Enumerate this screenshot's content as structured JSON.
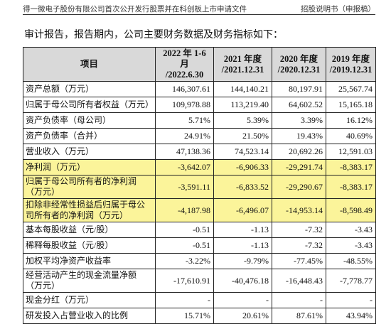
{
  "header": {
    "left": "得一微电子股份有限公司首次公开发行股票并在科创板上市申请文件",
    "right": "招股说明书（申报稿）"
  },
  "intro": "审计报告，报告期内，公司主要财务数据及财务指标如下：",
  "table": {
    "columns": [
      [
        "项目"
      ],
      [
        "2022 年 1-6 月",
        "/2022.6.30"
      ],
      [
        "2021 年度",
        "/2021.12.31"
      ],
      [
        "2020 年度",
        "/2020.12.31"
      ],
      [
        "2019 年度",
        "/2019.12.31"
      ]
    ],
    "rows": [
      [
        "资产总额（万元）",
        "146,307.61",
        "144,140.21",
        "80,197.91",
        "25,567.74"
      ],
      [
        "归属于母公司所有者权益（万元）",
        "109,978.88",
        "113,219.40",
        "64,602.52",
        "15,165.18"
      ],
      [
        "资产负债率（母公司）",
        "5.71%",
        "5.39%",
        "3.39%",
        "16.12%"
      ],
      [
        "资产负债率（合并）",
        "24.91%",
        "21.50%",
        "19.43%",
        "40.69%"
      ],
      [
        "营业收入（万元）",
        "47,138.36",
        "74,523.14",
        "20,692.26",
        "12,591.03"
      ],
      [
        "净利润（万元）",
        "-3,642.07",
        "-6,906.33",
        "-29,291.74",
        "-8,383.17"
      ],
      [
        "归属于母公司所有者的净利润（万元）",
        "-3,591.11",
        "-6,833.52",
        "-29,290.67",
        "-8,383.17"
      ],
      [
        "扣除非经常性损益后归属于母公司所有者的净利润（万元）",
        "-4,187.98",
        "-6,496.07",
        "-14,953.14",
        "-8,598.49"
      ],
      [
        "基本每股收益（元/股）",
        "-0.51",
        "-1.13",
        "-7.32",
        "-3.43"
      ],
      [
        "稀释每股收益（元/股）",
        "-0.51",
        "-1.13",
        "-7.32",
        "-3.43"
      ],
      [
        "加权平均净资产收益率",
        "-3.22%",
        "-9.79%",
        "-77.45%",
        "-48.55%"
      ],
      [
        "经营活动产生的现金流量净额（万元）",
        "-17,610.91",
        "-40,476.18",
        "-16,448.43",
        "-7,778.77"
      ],
      [
        "现金分红（万元）",
        "-",
        "-",
        "-",
        "-"
      ],
      [
        "研发投入占营业收入的比例",
        "15.71%",
        "20.61%",
        "87.61%",
        "43.94%"
      ]
    ],
    "highlighted_rows": [
      5,
      6,
      7
    ]
  }
}
